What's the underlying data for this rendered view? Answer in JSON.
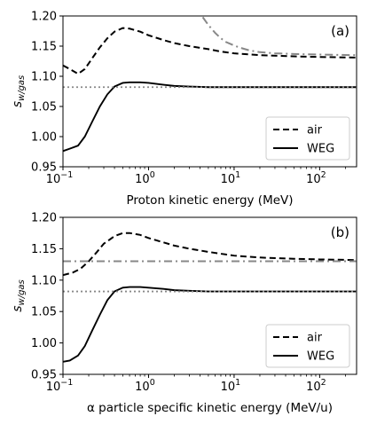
{
  "chart_data": [
    {
      "type": "line",
      "panel_label": "(a)",
      "xlabel": "Proton kinetic energy (MeV)",
      "ylabel": "s",
      "ylabel_sub": "w/gas",
      "xscale": "log",
      "xlim": [
        0.1,
        270
      ],
      "ylim": [
        0.95,
        1.2
      ],
      "x_ticks": [
        0.1,
        1,
        10,
        100
      ],
      "x_tick_labels": [
        "10",
        "10",
        "10",
        "10"
      ],
      "x_tick_exps": [
        "−1",
        "0",
        "1",
        "2"
      ],
      "y_ticks": [
        0.95,
        1.0,
        1.05,
        1.1,
        1.15,
        1.2
      ],
      "y_tick_labels": [
        "0.95",
        "1.00",
        "1.05",
        "1.10",
        "1.15",
        "1.20"
      ],
      "legend_position": "lower-right",
      "series": [
        {
          "name": "air",
          "style": "dashed",
          "color": "#000000",
          "in_legend": true,
          "points": [
            [
              0.1,
              1.118
            ],
            [
              0.12,
              1.112
            ],
            [
              0.15,
              1.104
            ],
            [
              0.18,
              1.112
            ],
            [
              0.22,
              1.13
            ],
            [
              0.27,
              1.148
            ],
            [
              0.33,
              1.163
            ],
            [
              0.4,
              1.174
            ],
            [
              0.5,
              1.18
            ],
            [
              0.6,
              1.179
            ],
            [
              0.8,
              1.174
            ],
            [
              1,
              1.168
            ],
            [
              1.5,
              1.16
            ],
            [
              2,
              1.155
            ],
            [
              3,
              1.15
            ],
            [
              5,
              1.145
            ],
            [
              7,
              1.141
            ],
            [
              10,
              1.138
            ],
            [
              20,
              1.135
            ],
            [
              50,
              1.133
            ],
            [
              100,
              1.132
            ],
            [
              270,
              1.131
            ]
          ]
        },
        {
          "name": "WEG",
          "style": "solid",
          "color": "#000000",
          "in_legend": true,
          "points": [
            [
              0.1,
              0.976
            ],
            [
              0.12,
              0.98
            ],
            [
              0.15,
              0.985
            ],
            [
              0.18,
              1.0
            ],
            [
              0.22,
              1.025
            ],
            [
              0.27,
              1.05
            ],
            [
              0.33,
              1.07
            ],
            [
              0.4,
              1.083
            ],
            [
              0.5,
              1.089
            ],
            [
              0.6,
              1.09
            ],
            [
              0.8,
              1.09
            ],
            [
              1,
              1.089
            ],
            [
              1.5,
              1.086
            ],
            [
              2,
              1.084
            ],
            [
              3,
              1.083
            ],
            [
              5,
              1.082
            ],
            [
              10,
              1.082
            ],
            [
              50,
              1.082
            ],
            [
              270,
              1.082
            ]
          ]
        },
        {
          "name": "",
          "style": "dashdot",
          "color": "#888888",
          "in_legend": false,
          "points": [
            [
              4.3,
              1.198
            ],
            [
              5,
              1.185
            ],
            [
              6,
              1.172
            ],
            [
              7,
              1.163
            ],
            [
              8,
              1.157
            ],
            [
              10,
              1.151
            ],
            [
              12,
              1.147
            ],
            [
              15,
              1.143
            ],
            [
              20,
              1.14
            ],
            [
              30,
              1.138
            ],
            [
              50,
              1.137
            ],
            [
              100,
              1.136
            ],
            [
              270,
              1.135
            ]
          ]
        },
        {
          "name": "",
          "style": "dotted",
          "color": "#888888",
          "in_legend": false,
          "points": [
            [
              0.1,
              1.082
            ],
            [
              270,
              1.082
            ]
          ]
        }
      ]
    },
    {
      "type": "line",
      "panel_label": "(b)",
      "xlabel": "α particle specific kinetic energy (MeV/u)",
      "ylabel": "s",
      "ylabel_sub": "w/gas",
      "xscale": "log",
      "xlim": [
        0.1,
        270
      ],
      "ylim": [
        0.95,
        1.2
      ],
      "x_ticks": [
        0.1,
        1,
        10,
        100
      ],
      "x_tick_labels": [
        "10",
        "10",
        "10",
        "10"
      ],
      "x_tick_exps": [
        "−1",
        "0",
        "1",
        "2"
      ],
      "y_ticks": [
        0.95,
        1.0,
        1.05,
        1.1,
        1.15,
        1.2
      ],
      "y_tick_labels": [
        "0.95",
        "1.00",
        "1.05",
        "1.10",
        "1.15",
        "1.20"
      ],
      "legend_position": "lower-right",
      "series": [
        {
          "name": "air",
          "style": "dashed",
          "color": "#000000",
          "in_legend": true,
          "points": [
            [
              0.1,
              1.108
            ],
            [
              0.13,
              1.112
            ],
            [
              0.16,
              1.118
            ],
            [
              0.2,
              1.13
            ],
            [
              0.25,
              1.145
            ],
            [
              0.3,
              1.158
            ],
            [
              0.4,
              1.17
            ],
            [
              0.5,
              1.175
            ],
            [
              0.6,
              1.175
            ],
            [
              0.8,
              1.172
            ],
            [
              1,
              1.167
            ],
            [
              1.5,
              1.16
            ],
            [
              2,
              1.155
            ],
            [
              3,
              1.15
            ],
            [
              5,
              1.145
            ],
            [
              7,
              1.142
            ],
            [
              10,
              1.139
            ],
            [
              20,
              1.136
            ],
            [
              50,
              1.134
            ],
            [
              100,
              1.133
            ],
            [
              270,
              1.132
            ]
          ]
        },
        {
          "name": "WEG",
          "style": "solid",
          "color": "#000000",
          "in_legend": true,
          "points": [
            [
              0.1,
              0.97
            ],
            [
              0.12,
              0.972
            ],
            [
              0.15,
              0.98
            ],
            [
              0.18,
              0.995
            ],
            [
              0.22,
              1.02
            ],
            [
              0.27,
              1.045
            ],
            [
              0.33,
              1.068
            ],
            [
              0.4,
              1.082
            ],
            [
              0.5,
              1.088
            ],
            [
              0.6,
              1.089
            ],
            [
              0.8,
              1.089
            ],
            [
              1,
              1.088
            ],
            [
              1.5,
              1.086
            ],
            [
              2,
              1.084
            ],
            [
              3,
              1.083
            ],
            [
              5,
              1.082
            ],
            [
              10,
              1.082
            ],
            [
              50,
              1.082
            ],
            [
              270,
              1.082
            ]
          ]
        },
        {
          "name": "",
          "style": "dashdot",
          "color": "#888888",
          "in_legend": false,
          "points": [
            [
              0.1,
              1.13
            ],
            [
              270,
              1.13
            ]
          ]
        },
        {
          "name": "",
          "style": "dotted",
          "color": "#888888",
          "in_legend": false,
          "points": [
            [
              0.1,
              1.082
            ],
            [
              270,
              1.082
            ]
          ]
        }
      ]
    }
  ]
}
